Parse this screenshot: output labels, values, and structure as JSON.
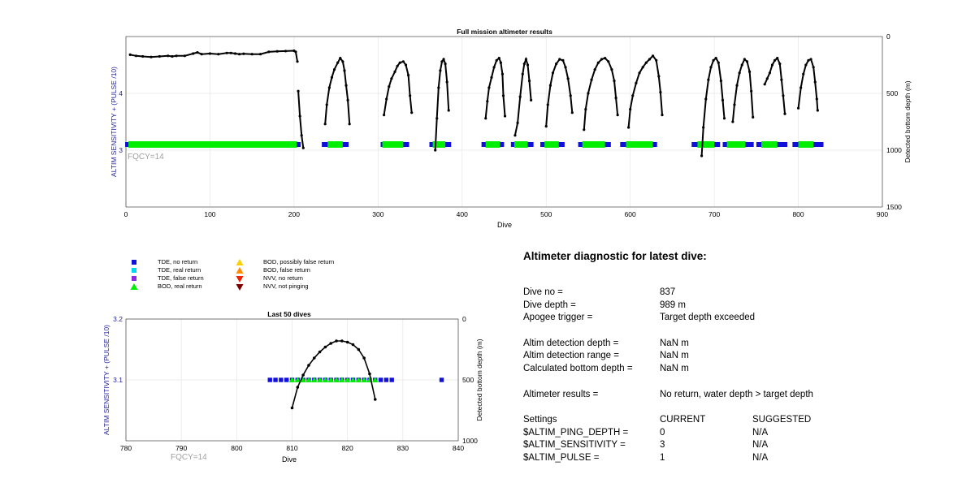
{
  "chart_data": [
    {
      "type": "scatter",
      "title": "Full mission altimeter results",
      "xlabel": "Dive",
      "ylabel": "ALTIM SENSITIVITY + (PULSE /10)",
      "ylabel_right": "Detected bottom depth (m)",
      "annotation": "FQCY=14",
      "xlim": [
        0,
        900
      ],
      "ylim_left": [
        2,
        5
      ],
      "ylim_right_reversed": [
        0,
        1500
      ],
      "x_ticks": [
        "0",
        "100",
        "200",
        "300",
        "400",
        "500",
        "600",
        "700",
        "800",
        "900"
      ],
      "y_ticks_left": [
        "3",
        "4"
      ],
      "y_ticks_right": [
        "0",
        "500",
        "1000",
        "1500"
      ],
      "grid": true,
      "sensitivity_value": 3.1,
      "tde_no_return_segments": [
        [
          1,
          206
        ],
        [
          235,
          263
        ],
        [
          305,
          335
        ],
        [
          363,
          385
        ],
        [
          425,
          448
        ],
        [
          460,
          483
        ],
        [
          495,
          520
        ],
        [
          540,
          575
        ],
        [
          590,
          630
        ],
        [
          675,
          705
        ],
        [
          712,
          745
        ],
        [
          752,
          785
        ],
        [
          795,
          828
        ]
      ],
      "bod_real_return_segments": [
        [
          3,
          203
        ],
        [
          240,
          258
        ],
        [
          305,
          330
        ],
        [
          365,
          380
        ],
        [
          428,
          445
        ],
        [
          462,
          478
        ],
        [
          498,
          515
        ],
        [
          543,
          570
        ],
        [
          595,
          627
        ],
        [
          680,
          700
        ],
        [
          715,
          737
        ],
        [
          756,
          775
        ],
        [
          800,
          818
        ]
      ],
      "bottom_depth_series": [
        [
          [
            5,
            160
          ],
          [
            12,
            170
          ],
          [
            20,
            175
          ],
          [
            30,
            180
          ],
          [
            40,
            175
          ],
          [
            50,
            170
          ],
          [
            55,
            175
          ],
          [
            60,
            170
          ],
          [
            70,
            170
          ],
          [
            80,
            150
          ],
          [
            85,
            140
          ],
          [
            90,
            155
          ],
          [
            100,
            150
          ],
          [
            110,
            155
          ],
          [
            120,
            145
          ],
          [
            125,
            145
          ],
          [
            130,
            150
          ],
          [
            135,
            155
          ],
          [
            140,
            152
          ],
          [
            150,
            155
          ],
          [
            160,
            155
          ],
          [
            170,
            135
          ],
          [
            180,
            130
          ],
          [
            190,
            128
          ],
          [
            200,
            125
          ],
          [
            202,
            135
          ],
          [
            204,
            220
          ]
        ],
        [
          [
            205,
            480
          ],
          [
            207,
            700
          ],
          [
            209,
            870
          ],
          [
            211,
            980
          ]
        ],
        [
          [
            237,
            770
          ],
          [
            239,
            600
          ],
          [
            242,
            450
          ],
          [
            245,
            360
          ],
          [
            248,
            290
          ],
          [
            252,
            230
          ],
          [
            255,
            190
          ],
          [
            258,
            220
          ],
          [
            260,
            300
          ],
          [
            262,
            430
          ],
          [
            264,
            560
          ],
          [
            266,
            770
          ]
        ],
        [
          [
            307,
            690
          ],
          [
            310,
            550
          ],
          [
            313,
            440
          ],
          [
            316,
            370
          ],
          [
            320,
            310
          ],
          [
            323,
            260
          ],
          [
            326,
            230
          ],
          [
            330,
            220
          ],
          [
            333,
            250
          ],
          [
            336,
            340
          ],
          [
            338,
            520
          ],
          [
            340,
            670
          ]
        ],
        [
          [
            368,
            1000
          ],
          [
            370,
            720
          ],
          [
            372,
            450
          ],
          [
            374,
            300
          ],
          [
            376,
            220
          ],
          [
            378,
            200
          ],
          [
            380,
            240
          ],
          [
            382,
            400
          ],
          [
            384,
            650
          ]
        ],
        [
          [
            428,
            720
          ],
          [
            430,
            570
          ],
          [
            432,
            450
          ],
          [
            435,
            360
          ],
          [
            438,
            270
          ],
          [
            441,
            210
          ],
          [
            444,
            190
          ],
          [
            446,
            230
          ],
          [
            448,
            330
          ],
          [
            449,
            520
          ],
          [
            451,
            700
          ]
        ],
        [
          [
            463,
            870
          ],
          [
            466,
            760
          ],
          [
            469,
            530
          ],
          [
            472,
            330
          ],
          [
            474,
            240
          ],
          [
            476,
            200
          ],
          [
            478,
            250
          ],
          [
            480,
            390
          ],
          [
            482,
            560
          ]
        ],
        [
          [
            500,
            790
          ],
          [
            502,
            600
          ],
          [
            505,
            430
          ],
          [
            508,
            320
          ],
          [
            512,
            240
          ],
          [
            516,
            200
          ],
          [
            520,
            210
          ],
          [
            523,
            270
          ],
          [
            526,
            370
          ],
          [
            529,
            520
          ],
          [
            531,
            670
          ]
        ],
        [
          [
            545,
            820
          ],
          [
            547,
            640
          ],
          [
            550,
            500
          ],
          [
            554,
            380
          ],
          [
            558,
            290
          ],
          [
            562,
            230
          ],
          [
            566,
            200
          ],
          [
            570,
            190
          ],
          [
            574,
            220
          ],
          [
            578,
            290
          ],
          [
            581,
            390
          ],
          [
            583,
            540
          ],
          [
            585,
            690
          ]
        ],
        [
          [
            598,
            800
          ],
          [
            600,
            640
          ],
          [
            603,
            520
          ],
          [
            607,
            410
          ],
          [
            611,
            320
          ],
          [
            615,
            270
          ],
          [
            619,
            230
          ],
          [
            623,
            200
          ],
          [
            627,
            170
          ],
          [
            631,
            210
          ],
          [
            634,
            350
          ],
          [
            636,
            490
          ],
          [
            638,
            690
          ]
        ],
        [
          [
            685,
            1050
          ],
          [
            687,
            800
          ],
          [
            690,
            550
          ],
          [
            693,
            380
          ],
          [
            696,
            270
          ],
          [
            699,
            210
          ],
          [
            702,
            190
          ],
          [
            705,
            230
          ],
          [
            708,
            390
          ],
          [
            710,
            560
          ],
          [
            712,
            720
          ]
        ],
        [
          [
            722,
            750
          ],
          [
            724,
            600
          ],
          [
            727,
            430
          ],
          [
            730,
            320
          ],
          [
            733,
            250
          ],
          [
            736,
            200
          ],
          [
            739,
            220
          ],
          [
            742,
            310
          ],
          [
            744,
            480
          ],
          [
            746,
            710
          ]
        ],
        [
          [
            760,
            420
          ],
          [
            763,
            370
          ],
          [
            766,
            320
          ],
          [
            769,
            250
          ],
          [
            772,
            210
          ],
          [
            775,
            190
          ],
          [
            778,
            240
          ],
          [
            780,
            380
          ],
          [
            782,
            520
          ],
          [
            784,
            680
          ]
        ],
        [
          [
            800,
            630
          ],
          [
            803,
            450
          ],
          [
            806,
            330
          ],
          [
            809,
            250
          ],
          [
            812,
            210
          ],
          [
            815,
            200
          ],
          [
            818,
            270
          ],
          [
            820,
            400
          ],
          [
            822,
            550
          ],
          [
            823,
            650
          ]
        ]
      ]
    },
    {
      "type": "scatter",
      "title": "Last 50 dives",
      "xlabel": "Dive",
      "ylabel": "ALTIM SENSITIVITY + (PULSE /10)",
      "ylabel_right": "Detected bottom depth (m)",
      "annotation": "FQCY=14",
      "xlim": [
        780,
        840
      ],
      "ylim_left": [
        3,
        3.2
      ],
      "ylim_right_reversed": [
        0,
        1000
      ],
      "x_ticks": [
        "780",
        "790",
        "800",
        "810",
        "820",
        "830",
        "840"
      ],
      "y_ticks_left": [
        "3.1",
        "3.2"
      ],
      "y_ticks_right": [
        "0",
        "500",
        "1000"
      ],
      "grid": true,
      "sensitivity_value": 3.1,
      "tde_no_return_x": [
        806,
        807,
        808,
        809,
        810,
        811,
        812,
        813,
        814,
        815,
        816,
        817,
        818,
        819,
        820,
        821,
        822,
        823,
        824,
        825,
        826,
        827,
        828,
        837
      ],
      "bod_real_return_x": [
        810,
        811,
        812,
        813,
        814,
        815,
        816,
        817,
        818,
        819,
        820,
        821,
        822,
        823,
        824,
        825
      ],
      "bottom_depth": [
        [
          810,
          730
        ],
        [
          811,
          560
        ],
        [
          812,
          460
        ],
        [
          813,
          380
        ],
        [
          814,
          320
        ],
        [
          815,
          270
        ],
        [
          816,
          230
        ],
        [
          817,
          200
        ],
        [
          818,
          180
        ],
        [
          819,
          180
        ],
        [
          820,
          190
        ],
        [
          821,
          210
        ],
        [
          822,
          250
        ],
        [
          823,
          320
        ],
        [
          824,
          450
        ],
        [
          825,
          660
        ]
      ]
    }
  ],
  "legend": {
    "items": [
      {
        "label": "TDE, no return",
        "shape": "square",
        "color": "#1010d8"
      },
      {
        "label": "TDE, real return",
        "shape": "square",
        "color": "#00d8f0"
      },
      {
        "label": "TDE, false return",
        "shape": "square",
        "color": "#8a2be2"
      },
      {
        "label": "BOD, real return",
        "shape": "triangle-up",
        "color": "#00ee00"
      },
      {
        "label": "BOD, possibly false return",
        "shape": "triangle-up",
        "color": "#ffd000"
      },
      {
        "label": "BOD, false return",
        "shape": "triangle-up",
        "color": "#ff8c00"
      },
      {
        "label": "NVV, no return",
        "shape": "triangle-down",
        "color": "#ee2200"
      },
      {
        "label": "NVV, not pinging",
        "shape": "triangle-down",
        "color": "#7a0000"
      }
    ]
  },
  "diagnostic": {
    "title": "Altimeter diagnostic for latest dive:",
    "dive_no_label": "Dive no =",
    "dive_no_value": "837",
    "dive_depth_label": "Dive depth =",
    "dive_depth_value": "989 m",
    "apogee_label": "Apogee trigger =",
    "apogee_value": "Target depth exceeded",
    "altim_det_depth_label": "Altim detection depth =",
    "altim_det_depth_value": "NaN m",
    "altim_det_range_label": "Altim detection range =",
    "altim_det_range_value": "NaN m",
    "calc_bottom_label": "Calculated bottom depth =",
    "calc_bottom_value": "NaN m",
    "results_label": "Altimeter results =",
    "results_value": "No return, water depth > target depth",
    "settings_label": "Settings",
    "current_label": "CURRENT",
    "suggested_label": "SUGGESTED",
    "settings": [
      {
        "name": "$ALTIM_PING_DEPTH =",
        "current": "0",
        "suggested": "N/A"
      },
      {
        "name": "$ALTIM_SENSITIVITY =",
        "current": "3",
        "suggested": "N/A"
      },
      {
        "name": "$ALTIM_PULSE =",
        "current": "1",
        "suggested": "N/A"
      }
    ]
  },
  "colors": {
    "left_axis_label": "#1f1f9e",
    "annotation": "#a0a0a0",
    "grid": "#e6e6e6",
    "depth_line": "#000000"
  }
}
